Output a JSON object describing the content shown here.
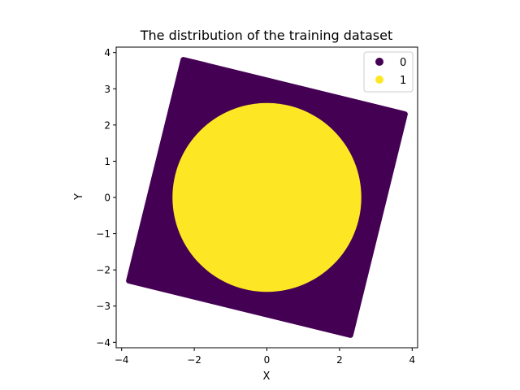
{
  "chart_data": {
    "type": "scatter",
    "title": "The distribution of the training dataset",
    "xlabel": "X",
    "ylabel": "Y",
    "xlim": [
      -4.15,
      4.15
    ],
    "ylim": [
      -4.15,
      4.15
    ],
    "xticks": [
      -4,
      -2,
      0,
      2,
      4
    ],
    "yticks": [
      -4,
      -3,
      -2,
      -1,
      0,
      1,
      2,
      3,
      4
    ],
    "xtick_labels": [
      "−4",
      "−2",
      "0",
      "2",
      "4"
    ],
    "ytick_labels": [
      "−4",
      "−3",
      "−2",
      "−1",
      "0",
      "1",
      "2",
      "3",
      "4"
    ],
    "grid": false,
    "legend_position": "top-right",
    "series": [
      {
        "name": "0",
        "color": "#440154",
        "region": "rotated square",
        "corners": [
          [
            -2.3,
            3.8
          ],
          [
            3.8,
            2.3
          ],
          [
            2.3,
            -3.8
          ],
          [
            -3.8,
            -2.3
          ]
        ]
      },
      {
        "name": "1",
        "color": "#fde725",
        "region": "disk",
        "center": [
          0,
          0
        ],
        "radius": 2.6
      }
    ]
  }
}
